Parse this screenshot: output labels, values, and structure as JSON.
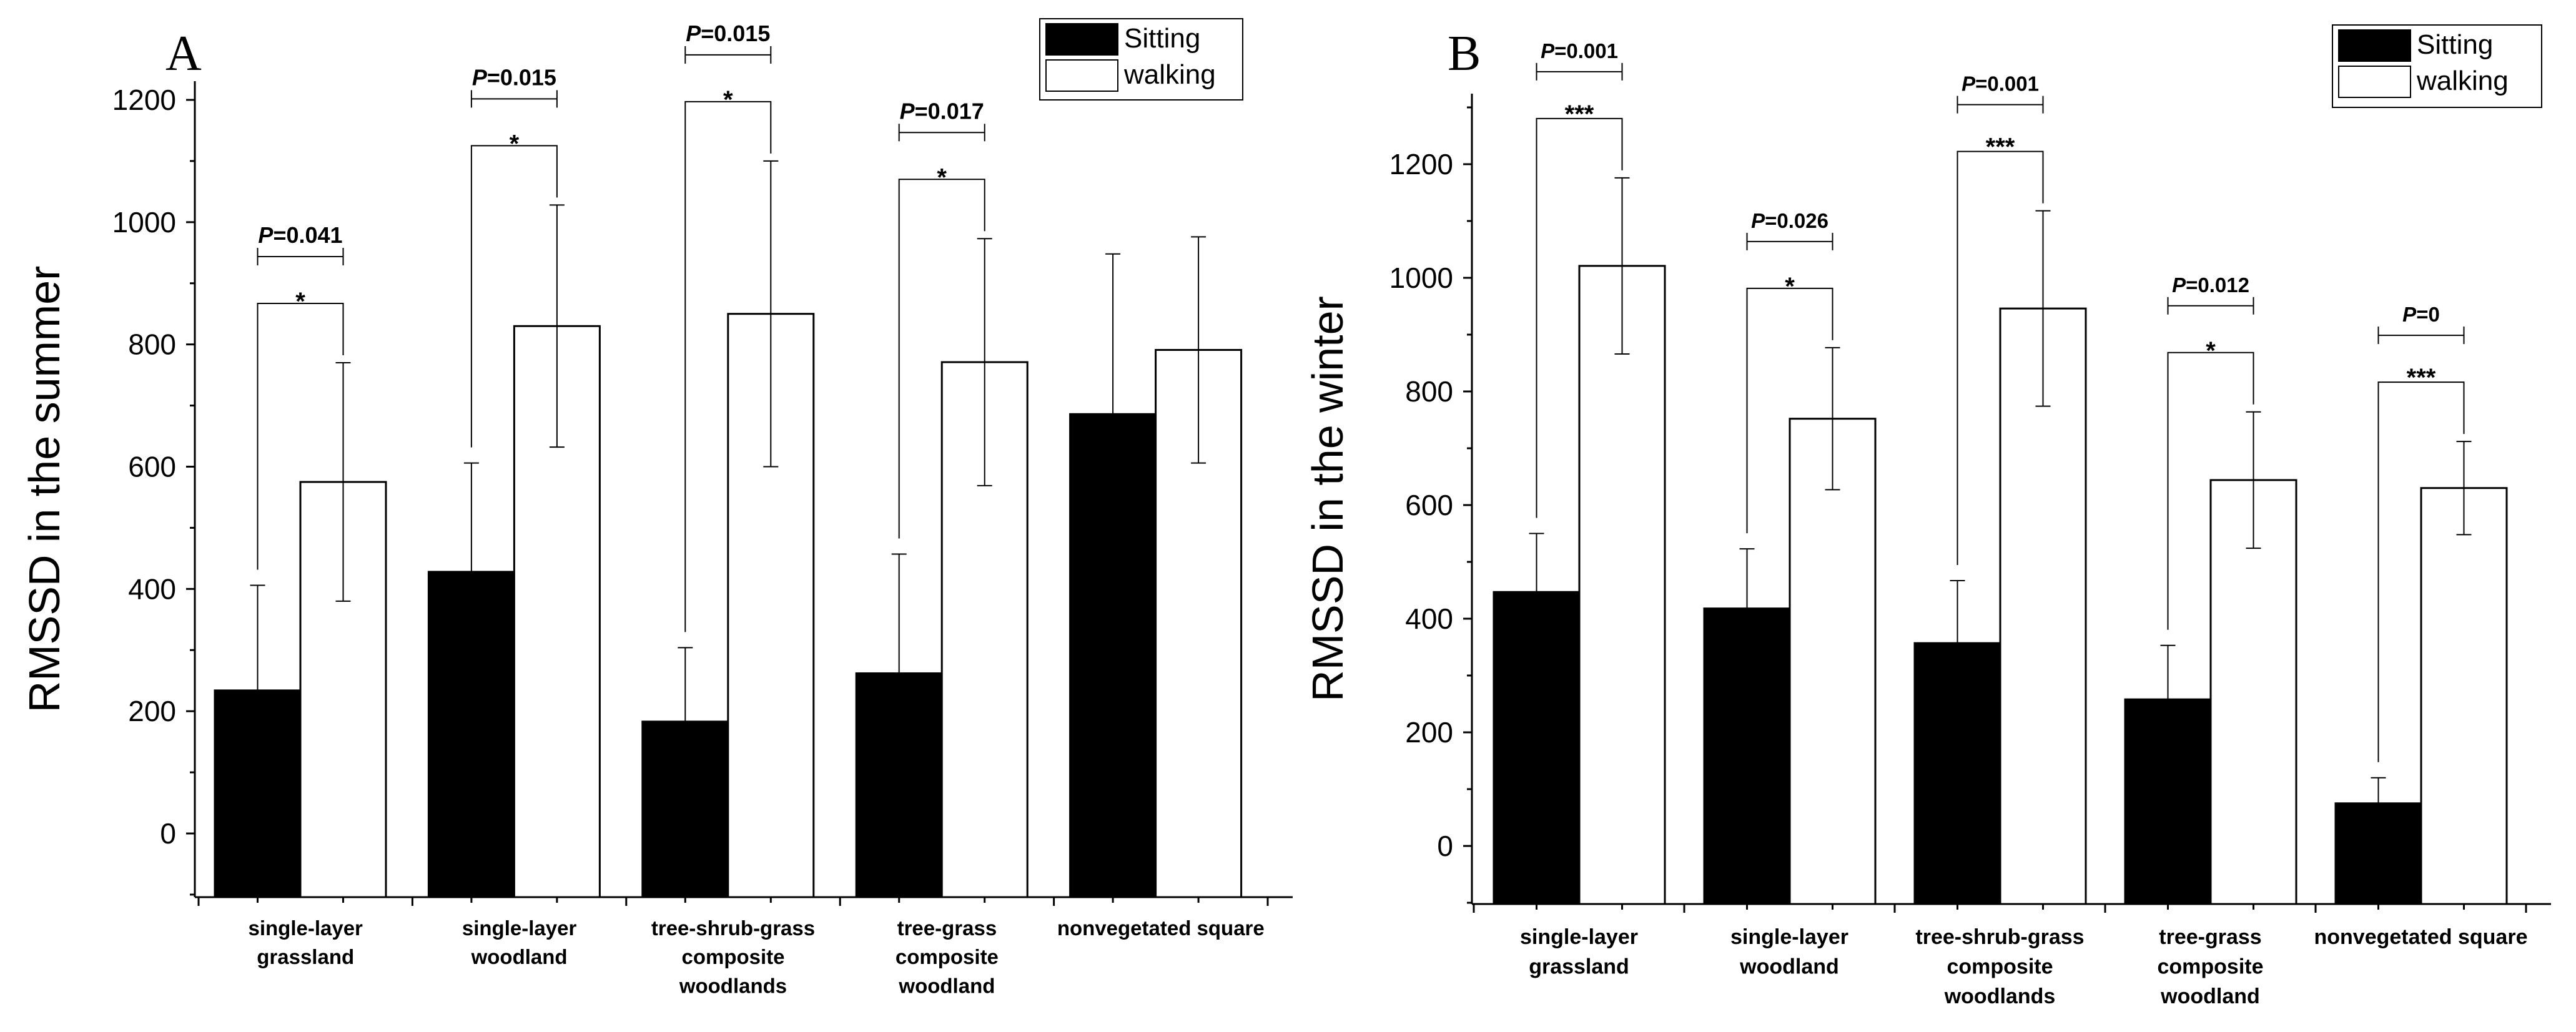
{
  "chart_data": [
    {
      "type": "bar",
      "panel_label": "A",
      "ylabel": "RMSSD in the summer",
      "ylim": [
        -100,
        1200
      ],
      "yticks": [
        0,
        200,
        400,
        600,
        800,
        1000,
        1200
      ],
      "categories": [
        [
          "single-layer",
          "grassland"
        ],
        [
          "single-layer",
          "woodland"
        ],
        [
          "tree-shrub-grass",
          "composite",
          "woodlands"
        ],
        [
          "tree-grass",
          "composite",
          "woodland"
        ],
        [
          "nonvegetated square"
        ]
      ],
      "series": [
        {
          "name": "Sitting",
          "color": "#000000",
          "values": [
            234,
            428,
            183,
            262,
            686
          ],
          "errors": [
            172,
            178,
            121,
            195,
            262
          ]
        },
        {
          "name": "walking",
          "color": "#ffffff",
          "values": [
            575,
            830,
            850,
            771,
            791
          ],
          "errors": [
            195,
            198,
            250,
            202,
            185
          ]
        }
      ],
      "comparisons": [
        {
          "index": 0,
          "p_text": "P",
          "p_value": "=0.041",
          "stars": "*"
        },
        {
          "index": 1,
          "p_text": "P",
          "p_value": "=0.015",
          "stars": "*"
        },
        {
          "index": 2,
          "p_text": "P",
          "p_value": "=0.015",
          "stars": "*"
        },
        {
          "index": 3,
          "p_text": "P",
          "p_value": "=0.017",
          "stars": "*"
        }
      ],
      "legend": {
        "position": "top-right",
        "items": [
          "Sitting",
          "walking"
        ]
      },
      "grid": false
    },
    {
      "type": "bar",
      "panel_label": "B",
      "ylabel": "RMSSD in the winter",
      "ylim": [
        -100,
        1300
      ],
      "yticks": [
        0,
        200,
        400,
        600,
        800,
        1000,
        1200
      ],
      "categories": [
        [
          "single-layer",
          "grassland"
        ],
        [
          "single-layer",
          "woodland"
        ],
        [
          "tree-shrub-grass",
          "composite",
          "woodlands"
        ],
        [
          "tree-grass",
          "composite",
          "woodland"
        ],
        [
          "nonvegetated square"
        ]
      ],
      "series": [
        {
          "name": "Sitting",
          "color": "#000000",
          "values": [
            447,
            418,
            357,
            258,
            75
          ],
          "errors": [
            103,
            105,
            110,
            95,
            45
          ]
        },
        {
          "name": "walking",
          "color": "#ffffff",
          "values": [
            1021,
            752,
            946,
            644,
            630
          ],
          "errors": [
            155,
            125,
            172,
            120,
            82
          ]
        }
      ],
      "comparisons": [
        {
          "index": 0,
          "p_text": "P",
          "p_value": "=0.001",
          "stars": "***"
        },
        {
          "index": 1,
          "p_text": "P",
          "p_value": "=0.026",
          "stars": "*"
        },
        {
          "index": 2,
          "p_text": "P",
          "p_value": "=0.001",
          "stars": "***"
        },
        {
          "index": 3,
          "p_text": "P",
          "p_value": "=0.012",
          "stars": "*"
        },
        {
          "index": 4,
          "p_text": "P",
          "p_value": "=0",
          "stars": "***"
        }
      ],
      "legend": {
        "position": "top-right",
        "items": [
          "Sitting",
          "walking"
        ]
      },
      "grid": false
    }
  ]
}
